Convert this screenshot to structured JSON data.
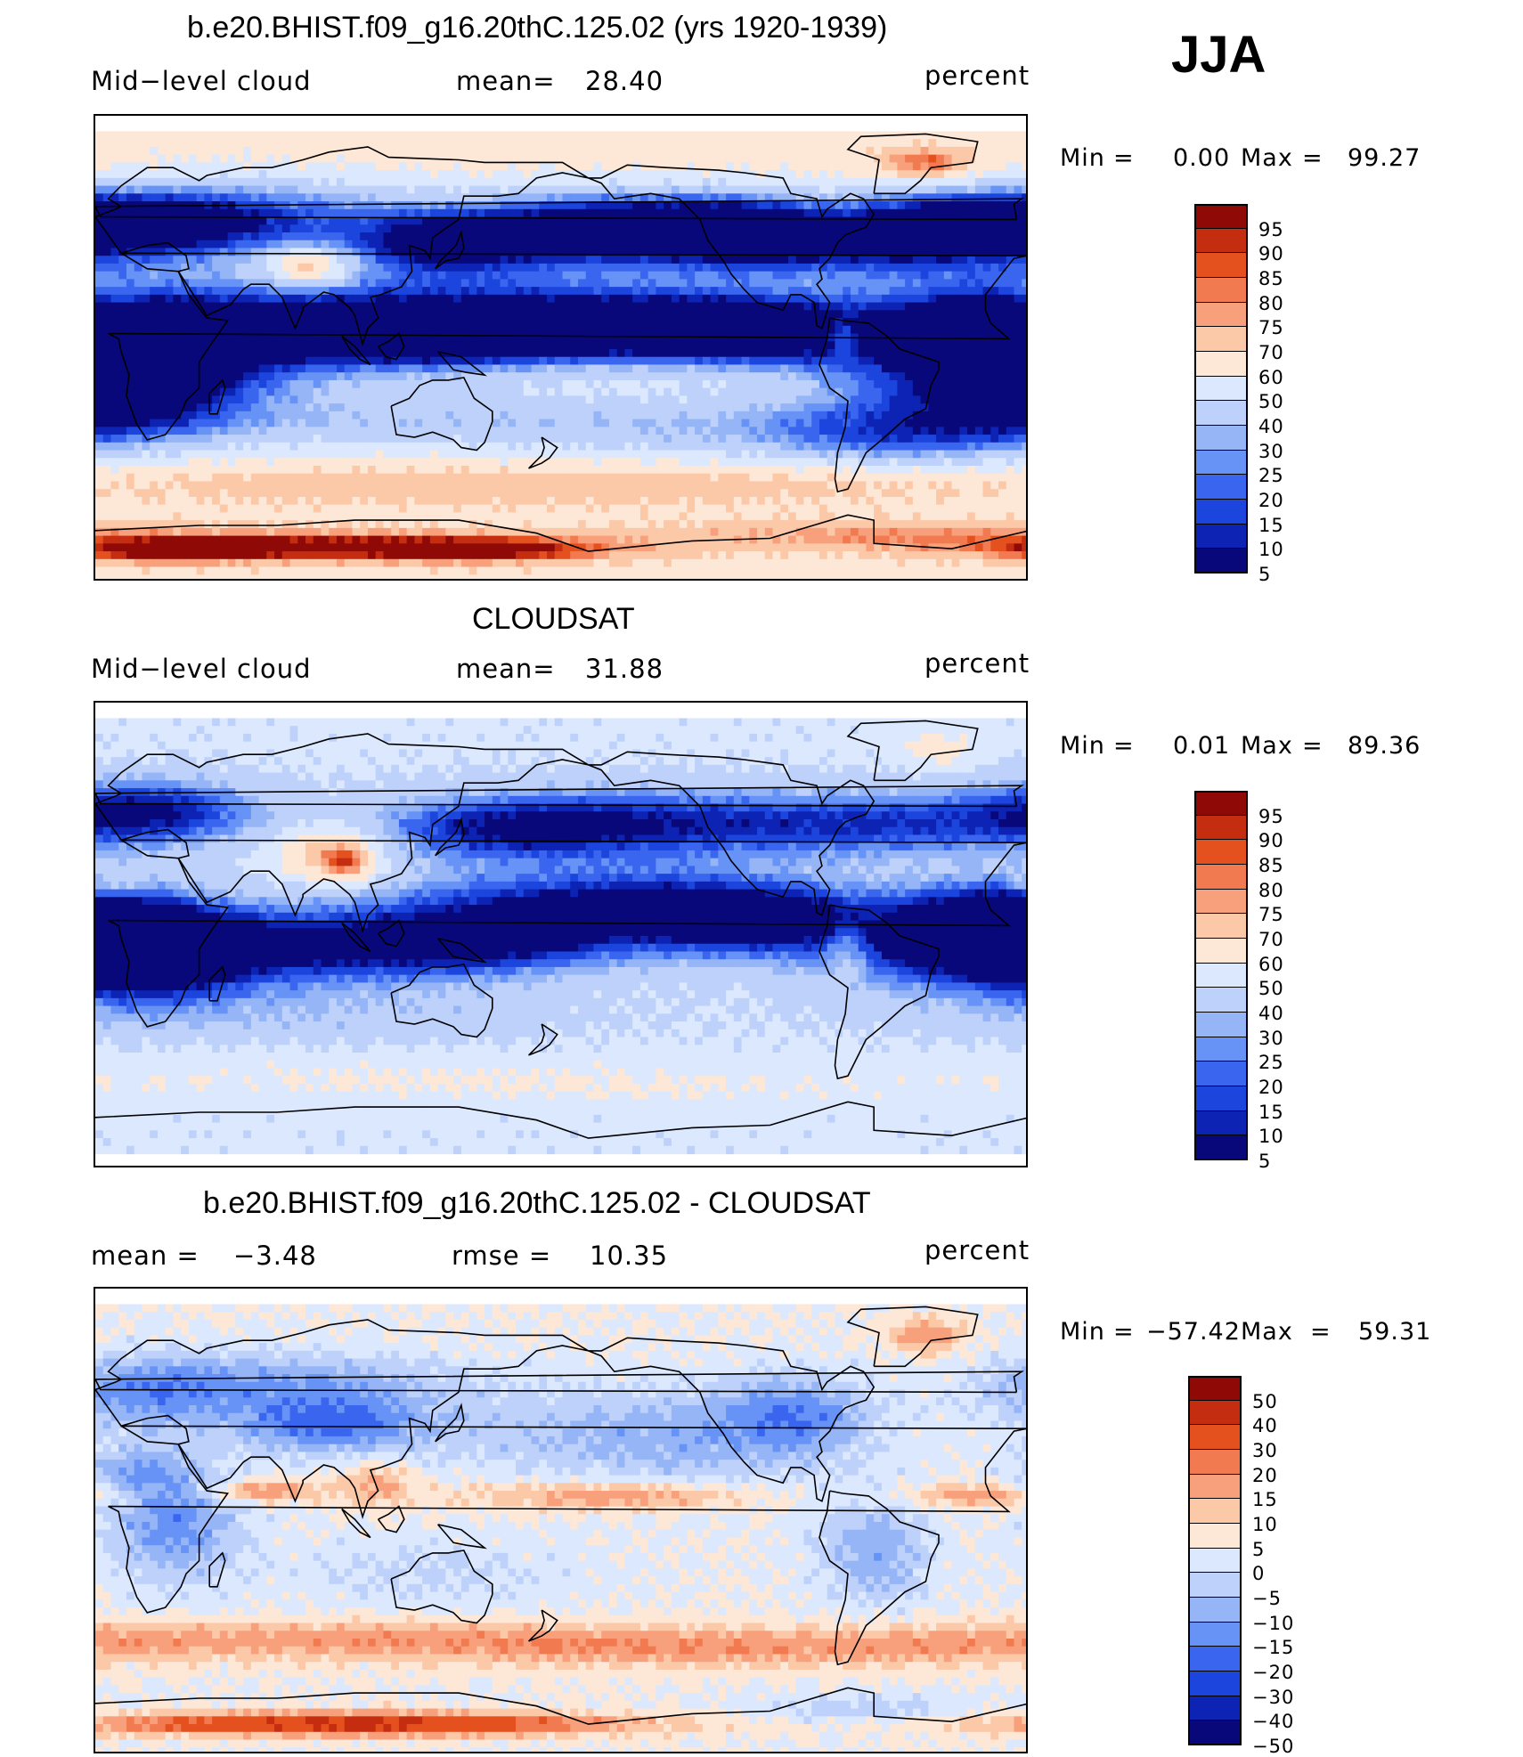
{
  "season": "JJA",
  "colors": {
    "abs_scale": [
      "#08087a",
      "#0c23b4",
      "#1b45dd",
      "#3a66ef",
      "#6693f5",
      "#95b5f7",
      "#bdd1fa",
      "#dbe8fd",
      "#fde7d6",
      "#fbc8a8",
      "#f8a07b",
      "#f27a50",
      "#e4511f",
      "#c52d10",
      "#8f0a06"
    ],
    "diff_scale": [
      "#08087a",
      "#0c23b4",
      "#1b45dd",
      "#3a66ef",
      "#6693f5",
      "#95b5f7",
      "#bdd1fa",
      "#dbe8fd",
      "#fde7d6",
      "#fbc8a8",
      "#f8a07b",
      "#f27a50",
      "#e4511f",
      "#c52d10",
      "#8f0a06"
    ],
    "coast": "#000000",
    "missing": "#ffffff"
  },
  "panels": [
    {
      "title": "b.e20.BHIST.f09_g16.20thC.125.02 (yrs 1920-1939)",
      "left_label": "Mid−level cloud",
      "center_label": "mean=",
      "center_value": "28.40",
      "units": "percent",
      "min_label": "Min",
      "min_value": "0.00",
      "max_label": "Max",
      "max_value": "99.27",
      "eq": "=",
      "colorbar_labels": [
        "95",
        "90",
        "85",
        "80",
        "75",
        "70",
        "60",
        "50",
        "40",
        "30",
        "25",
        "20",
        "15",
        "10",
        "5"
      ],
      "field": "model"
    },
    {
      "title": "CLOUDSAT",
      "left_label": "Mid−level cloud",
      "center_label": "mean=",
      "center_value": "31.88",
      "units": "percent",
      "min_label": "Min",
      "min_value": "0.01",
      "max_label": "Max",
      "max_value": "89.36",
      "eq": "=",
      "colorbar_labels": [
        "95",
        "90",
        "85",
        "80",
        "75",
        "70",
        "60",
        "50",
        "40",
        "30",
        "25",
        "20",
        "15",
        "10",
        "5"
      ],
      "field": "obs"
    },
    {
      "title": "b.e20.BHIST.f09_g16.20thC.125.02 - CLOUDSAT",
      "left_label": "mean  =",
      "left_value": "−3.48",
      "center_label": "rmse  =",
      "center_value": "10.35",
      "units": "percent",
      "min_label": "Min",
      "min_value": "−57.42",
      "max_label": "Max",
      "max_value": "59.31",
      "eq": "=",
      "colorbar_labels": [
        "50",
        "40",
        "30",
        "20",
        "15",
        "10",
        "5",
        "0",
        "−5",
        "−10",
        "−15",
        "−20",
        "−30",
        "−40",
        "−50"
      ],
      "field": "diff"
    }
  ]
}
